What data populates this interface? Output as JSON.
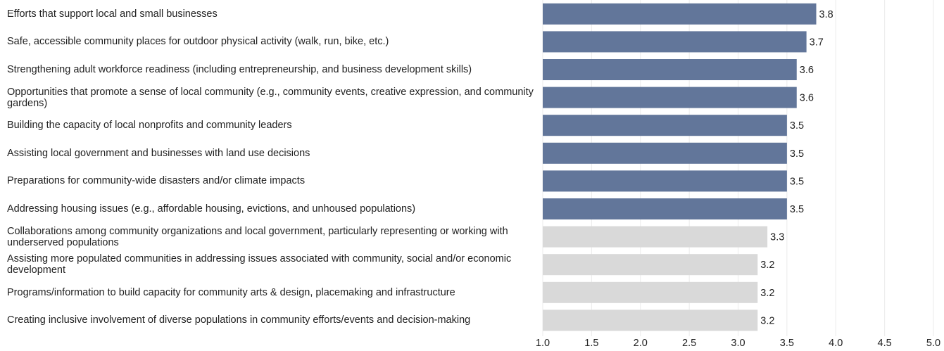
{
  "chart_data": {
    "type": "bar",
    "orientation": "horizontal",
    "categories": [
      "Efforts that support local and small businesses",
      "Safe, accessible community places for outdoor physical activity (walk, run, bike, etc.)",
      "Strengthening adult workforce readiness (including entrepreneurship, and business development skills)",
      "Opportunities that promote a sense of local community (e.g., community events, creative expression, and community gardens)",
      "Building the capacity of local nonprofits and community leaders",
      "Assisting local government and businesses with land use decisions",
      "Preparations for community-wide disasters and/or climate impacts",
      "Addressing housing issues (e.g., affordable housing, evictions, and unhoused populations)",
      "Collaborations among community organizations and local government, particularly representing or working with underserved populations",
      "Assisting more populated communities in addressing issues associated with community, social and/or economic development",
      "Programs/information to build capacity for community arts & design, placemaking and infrastructure",
      "Creating inclusive involvement of diverse populations in community efforts/events and decision-making"
    ],
    "values": [
      3.8,
      3.7,
      3.6,
      3.6,
      3.5,
      3.5,
      3.5,
      3.5,
      3.3,
      3.2,
      3.2,
      3.2
    ],
    "value_labels": [
      "3.8",
      "3.7",
      "3.6",
      "3.6",
      "3.5",
      "3.5",
      "3.5",
      "3.5",
      "3.3",
      "3.2",
      "3.2",
      "3.2"
    ],
    "highlighted": [
      true,
      true,
      true,
      true,
      true,
      true,
      true,
      true,
      false,
      false,
      false,
      false
    ],
    "xlim": [
      1.0,
      5.0
    ],
    "xticks": [
      "1.0",
      "1.5",
      "2.0",
      "2.5",
      "3.0",
      "3.5",
      "4.0",
      "4.5",
      "5.0"
    ],
    "grid": true,
    "colors": {
      "highlight": "#62769a",
      "muted": "#d9d9d9",
      "grid": "#ebebeb",
      "text": "#222222"
    }
  }
}
